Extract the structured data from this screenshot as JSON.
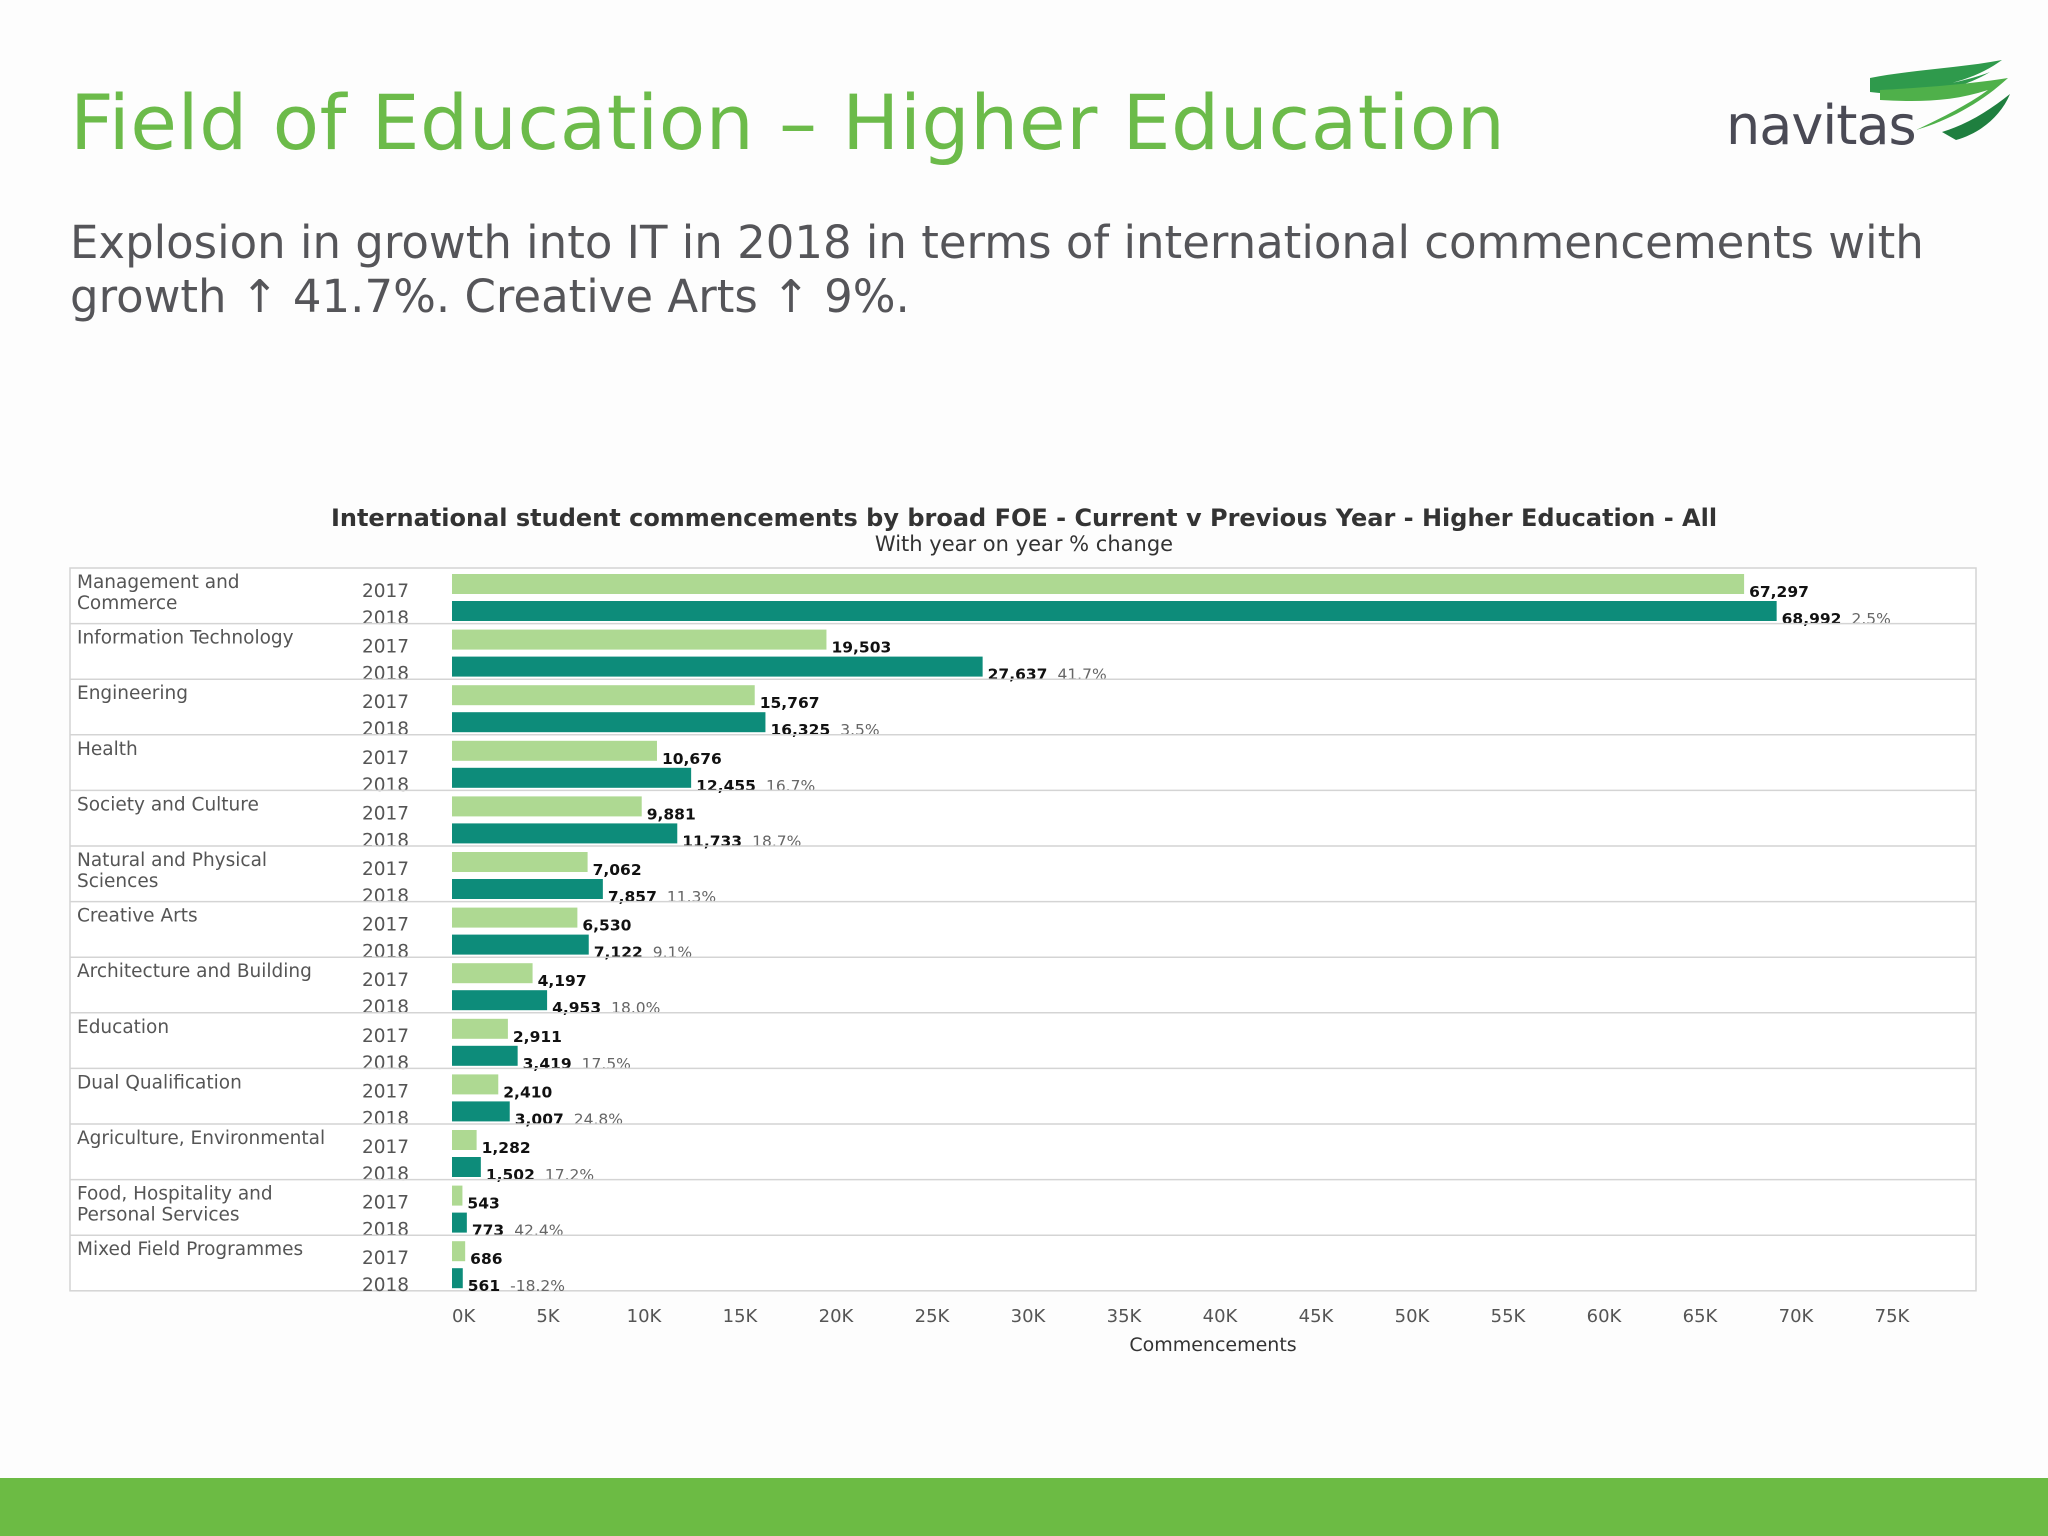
{
  "slide": {
    "title": "Field of Education – Higher Education",
    "subtitle": "Explosion in growth into IT in 2018 in terms of international commencements with growth ↑ 41.7%. Creative Arts ↑ 9%.",
    "logo_text": "navitas"
  },
  "colors": {
    "title": "#6cbb4a",
    "bar_2017": "#aed992",
    "bar_2018": "#0d8c7a",
    "footer": "#6cbb44"
  },
  "chart_data": {
    "type": "bar",
    "orientation": "horizontal",
    "title": "International student commencements by broad FOE - Current v Previous Year - Higher Education - All",
    "subtitle": "With year on year % change",
    "xlabel": "Commencements",
    "xlim": [
      0,
      75000
    ],
    "x_ticks": [
      "0K",
      "5K",
      "10K",
      "15K",
      "20K",
      "25K",
      "30K",
      "35K",
      "40K",
      "45K",
      "50K",
      "55K",
      "60K",
      "65K",
      "70K",
      "75K"
    ],
    "series_names": [
      "2017",
      "2018"
    ],
    "categories": [
      {
        "name": [
          "Management and",
          "Commerce"
        ],
        "v2017": 67297,
        "l2017": "67,297",
        "v2018": 68992,
        "l2018": "68,992",
        "change": "2.5%"
      },
      {
        "name": [
          "Information Technology"
        ],
        "v2017": 19503,
        "l2017": "19,503",
        "v2018": 27637,
        "l2018": "27,637",
        "change": "41.7%"
      },
      {
        "name": [
          "Engineering"
        ],
        "v2017": 15767,
        "l2017": "15,767",
        "v2018": 16325,
        "l2018": "16,325",
        "change": "3.5%"
      },
      {
        "name": [
          "Health"
        ],
        "v2017": 10676,
        "l2017": "10,676",
        "v2018": 12455,
        "l2018": "12,455",
        "change": "16.7%"
      },
      {
        "name": [
          "Society and Culture"
        ],
        "v2017": 9881,
        "l2017": "9,881",
        "v2018": 11733,
        "l2018": "11,733",
        "change": "18.7%"
      },
      {
        "name": [
          "Natural and Physical",
          "Sciences"
        ],
        "v2017": 7062,
        "l2017": "7,062",
        "v2018": 7857,
        "l2018": "7,857",
        "change": "11.3%"
      },
      {
        "name": [
          "Creative Arts"
        ],
        "v2017": 6530,
        "l2017": "6,530",
        "v2018": 7122,
        "l2018": "7,122",
        "change": "9.1%"
      },
      {
        "name": [
          "Architecture and Building"
        ],
        "v2017": 4197,
        "l2017": "4,197",
        "v2018": 4953,
        "l2018": "4,953",
        "change": "18.0%"
      },
      {
        "name": [
          "Education"
        ],
        "v2017": 2911,
        "l2017": "2,911",
        "v2018": 3419,
        "l2018": "3,419",
        "change": "17.5%"
      },
      {
        "name": [
          "Dual Qualification"
        ],
        "v2017": 2410,
        "l2017": "2,410",
        "v2018": 3007,
        "l2018": "3,007",
        "change": "24.8%"
      },
      {
        "name": [
          "Agriculture, Environmental"
        ],
        "v2017": 1282,
        "l2017": "1,282",
        "v2018": 1502,
        "l2018": "1,502",
        "change": "17.2%"
      },
      {
        "name": [
          "Food, Hospitality and",
          "Personal Services"
        ],
        "v2017": 543,
        "l2017": "543",
        "v2018": 773,
        "l2018": "773",
        "change": "42.4%"
      },
      {
        "name": [
          "Mixed Field Programmes"
        ],
        "v2017": 686,
        "l2017": "686",
        "v2018": 561,
        "l2018": "561",
        "change": "-18.2%"
      }
    ]
  }
}
